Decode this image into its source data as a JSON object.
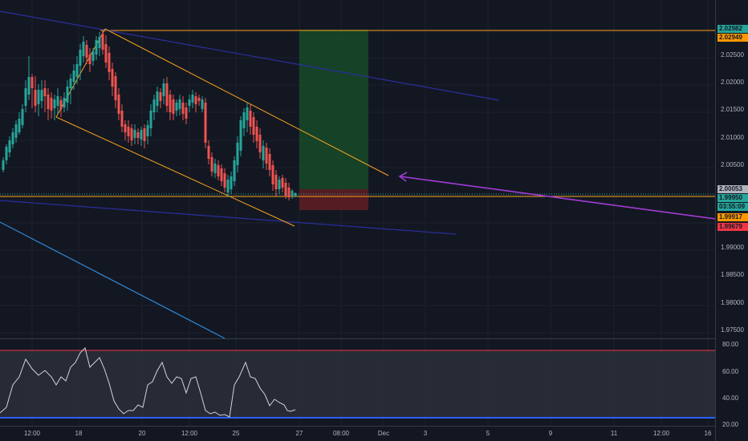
{
  "price_axis": {
    "ticks": [
      "2.02500",
      "2.02000",
      "2.01500",
      "2.01000",
      "2.00500",
      "1.99000",
      "1.98500",
      "1.98000",
      "1.97500"
    ]
  },
  "price_tags": [
    {
      "label": "2.02982",
      "color": "#26a69a"
    },
    {
      "label": "2.02949",
      "color": "#ff9800"
    },
    {
      "label": "2.00053",
      "color": "#b2b5be"
    },
    {
      "label": "1.99950",
      "color": "#26a69a"
    },
    {
      "label": "03:55:09",
      "color": "#26a69a"
    },
    {
      "label": "1.99917",
      "color": "#ff9800"
    },
    {
      "label": "1.99679",
      "color": "#f23645"
    }
  ],
  "rsi_axis": {
    "ticks": [
      "80.00",
      "60.00",
      "40.00",
      "20.00"
    ]
  },
  "time_axis": {
    "labels": [
      "12:00",
      "18",
      "20",
      "12:00",
      "25",
      "27",
      "08:00",
      "Dec",
      "3",
      "5",
      "9",
      "11",
      "12:00",
      "16"
    ]
  },
  "colors": {
    "background": "#131722",
    "up_candle": "#26a69a",
    "down_candle": "#ef5350",
    "channel": "#f7a21b",
    "trend_blue": "#2a2e9e",
    "light_blue": "#2f8ad8",
    "arrow": "#9c27b0",
    "profit_zone": "#1b4d2a",
    "loss_zone": "#5c1d24",
    "rsi_line": "#d1d4dc",
    "rsi_upper": "#f23645",
    "rsi_lower": "#2962ff"
  }
}
